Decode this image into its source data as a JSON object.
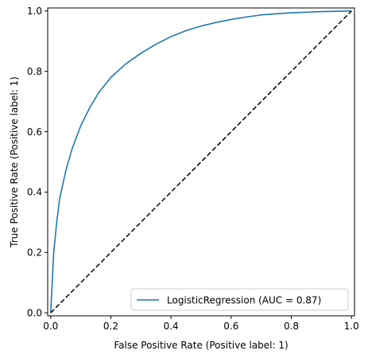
{
  "chart_data": {
    "type": "line",
    "title": "",
    "xlabel": "False Positive Rate (Positive label: 1)",
    "ylabel": "True Positive Rate (Positive label: 1)",
    "xlim": [
      -0.01,
      1.01
    ],
    "ylim": [
      -0.01,
      1.01
    ],
    "x_ticks": [
      "0.0",
      "0.2",
      "0.4",
      "0.6",
      "0.8",
      "1.0"
    ],
    "y_ticks": [
      "0.0",
      "0.2",
      "0.4",
      "0.6",
      "0.8",
      "1.0"
    ],
    "grid": false,
    "legend_position": "lower-right",
    "series": [
      {
        "name": "LogisticRegression (AUC = 0.87)",
        "color": "#1f77b4",
        "style": "solid",
        "x": [
          0,
          0.005,
          0.01,
          0.02,
          0.03,
          0.05,
          0.07,
          0.1,
          0.13,
          0.16,
          0.2,
          0.25,
          0.3,
          0.35,
          0.4,
          0.45,
          0.5,
          0.55,
          0.6,
          0.65,
          0.7,
          0.8,
          0.9,
          1.0
        ],
        "y": [
          0,
          0.1,
          0.2,
          0.3,
          0.38,
          0.47,
          0.54,
          0.62,
          0.68,
          0.73,
          0.78,
          0.825,
          0.86,
          0.89,
          0.915,
          0.935,
          0.95,
          0.962,
          0.972,
          0.98,
          0.987,
          0.994,
          0.998,
          1.0
        ]
      },
      {
        "name": "",
        "color": "#000000",
        "style": "dashed",
        "x": [
          0,
          1
        ],
        "y": [
          0,
          1
        ]
      }
    ]
  }
}
